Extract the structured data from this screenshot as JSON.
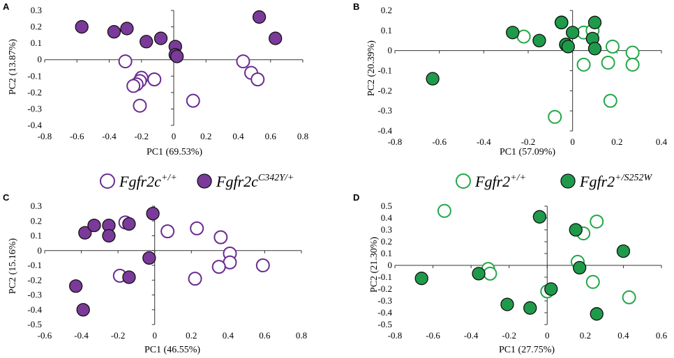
{
  "colors": {
    "purple": "#6a2c91",
    "purple_fill": "#7b3a9a",
    "green": "#22a748",
    "green_fill": "#1f9a4a",
    "stroke_dark": "#111111",
    "axis": "#333333"
  },
  "legends": [
    {
      "items": [
        {
          "name": "Fgfr2c",
          "sup": "+/+",
          "style": "open",
          "color": "purple"
        },
        {
          "name": "Fgfr2c",
          "sup": "C342Y/+",
          "style": "filled",
          "color": "purple"
        }
      ]
    },
    {
      "items": [
        {
          "name": "Fgfr2",
          "sup": "+/+",
          "style": "open",
          "color": "green"
        },
        {
          "name": "Fgfr2",
          "sup": "+/S252W",
          "style": "filled",
          "color": "green"
        }
      ]
    }
  ],
  "chart_data": [
    {
      "type": "scatter",
      "panel": "A",
      "xlabel": "PC1 (69.53%)",
      "ylabel": "PC2 (13.87%)",
      "xlim": [
        -0.8,
        0.8
      ],
      "ylim": [
        -0.4,
        0.3
      ],
      "xticks": [
        "-0.8",
        "-0.6",
        "-0.4",
        "-0.2",
        "0",
        "0.2",
        "0.4",
        "0.6",
        "0.8"
      ],
      "yticks": [
        "-0.4",
        "-0.3",
        "-0.2",
        "-0.1",
        "0",
        "0.1",
        "0.2",
        "0.3"
      ],
      "color": "purple",
      "series": [
        {
          "name": "Fgfr2c+/+",
          "style": "open",
          "points": [
            [
              -0.3,
              -0.01
            ],
            [
              -0.2,
              -0.11
            ],
            [
              -0.21,
              -0.13
            ],
            [
              -0.23,
              -0.15
            ],
            [
              -0.25,
              -0.16
            ],
            [
              -0.12,
              -0.12
            ],
            [
              -0.21,
              -0.28
            ],
            [
              0.12,
              -0.25
            ],
            [
              0.43,
              -0.01
            ],
            [
              0.48,
              -0.08
            ],
            [
              0.52,
              -0.12
            ]
          ]
        },
        {
          "name": "Fgfr2cC342Y/+",
          "style": "filled",
          "points": [
            [
              -0.57,
              0.2
            ],
            [
              -0.37,
              0.17
            ],
            [
              -0.29,
              0.19
            ],
            [
              -0.17,
              0.11
            ],
            [
              -0.08,
              0.13
            ],
            [
              0.01,
              0.08
            ],
            [
              0.01,
              0.03
            ],
            [
              0.02,
              0.02
            ],
            [
              0.53,
              0.26
            ],
            [
              0.63,
              0.13
            ]
          ]
        }
      ]
    },
    {
      "type": "scatter",
      "panel": "B",
      "xlabel": "PC1 (57.09%)",
      "ylabel": "PC2 (20.39%)",
      "xlim": [
        -0.8,
        0.4
      ],
      "ylim": [
        -0.4,
        0.2
      ],
      "xticks": [
        "-0.8",
        "-0.6",
        "-0.4",
        "-0.2",
        "0",
        "0.2",
        "0.4"
      ],
      "yticks": [
        "-0.4",
        "-0.3",
        "-0.2",
        "-0.1",
        "0",
        "0.1",
        "0.2"
      ],
      "color": "green",
      "series": [
        {
          "name": "Fgfr2+/+",
          "style": "open",
          "points": [
            [
              -0.22,
              0.07
            ],
            [
              -0.05,
              0.14
            ],
            [
              0.05,
              0.09
            ],
            [
              0.05,
              -0.07
            ],
            [
              0.18,
              0.02
            ],
            [
              0.27,
              -0.01
            ],
            [
              0.27,
              -0.07
            ],
            [
              0.16,
              -0.06
            ],
            [
              0.17,
              -0.25
            ],
            [
              -0.08,
              -0.33
            ],
            [
              -0.03,
              0.03
            ],
            [
              0.09,
              0.1
            ]
          ]
        },
        {
          "name": "Fgfr2+/S252W",
          "style": "filled",
          "points": [
            [
              -0.27,
              0.09
            ],
            [
              -0.15,
              0.05
            ],
            [
              -0.05,
              0.14
            ],
            [
              0.0,
              0.09
            ],
            [
              -0.03,
              0.03
            ],
            [
              -0.02,
              0.02
            ],
            [
              0.1,
              0.14
            ],
            [
              0.09,
              0.06
            ],
            [
              0.1,
              0.01
            ],
            [
              -0.63,
              -0.14
            ]
          ]
        }
      ]
    },
    {
      "type": "scatter",
      "panel": "C",
      "xlabel": "PC1 (46.55%)",
      "ylabel": "PC2 (15.16%)",
      "xlim": [
        -0.6,
        0.8
      ],
      "ylim": [
        -0.5,
        0.3
      ],
      "xticks": [
        "-0.6",
        "-0.4",
        "-0.2",
        "0",
        "0.2",
        "0.4",
        "0.6",
        "0.8"
      ],
      "yticks": [
        "-0.5",
        "-0.4",
        "-0.3",
        "-0.2",
        "-0.1",
        "0",
        "0.1",
        "0.2",
        "0.3"
      ],
      "color": "purple",
      "series": [
        {
          "name": "Fgfr2c+/+",
          "style": "open",
          "points": [
            [
              -0.16,
              0.19
            ],
            [
              0.07,
              0.13
            ],
            [
              0.23,
              0.15
            ],
            [
              0.36,
              0.09
            ],
            [
              0.41,
              -0.02
            ],
            [
              0.41,
              -0.08
            ],
            [
              0.35,
              -0.11
            ],
            [
              0.59,
              -0.1
            ],
            [
              -0.19,
              -0.17
            ],
            [
              0.22,
              -0.19
            ]
          ]
        },
        {
          "name": "Fgfr2cC342Y/+",
          "style": "filled",
          "points": [
            [
              -0.38,
              0.12
            ],
            [
              -0.33,
              0.17
            ],
            [
              -0.25,
              0.17
            ],
            [
              -0.25,
              0.1
            ],
            [
              -0.14,
              0.18
            ],
            [
              -0.01,
              0.25
            ],
            [
              -0.03,
              -0.05
            ],
            [
              -0.14,
              -0.18
            ],
            [
              -0.43,
              -0.24
            ],
            [
              -0.39,
              -0.4
            ]
          ]
        }
      ]
    },
    {
      "type": "scatter",
      "panel": "D",
      "xlabel": "PC1 (27.75%)",
      "ylabel": "PC2 (21.30%)",
      "xlim": [
        -0.8,
        0.6
      ],
      "ylim": [
        -0.5,
        0.5
      ],
      "xticks": [
        "-0.8",
        "-0.6",
        "-0.4",
        "-0.2",
        "0",
        "0.2",
        "0.4",
        "0.6"
      ],
      "yticks": [
        "-0.5",
        "-0.4",
        "-0.3",
        "-0.2",
        "-0.1",
        "0",
        "0.1",
        "0.2",
        "0.3",
        "0.4",
        "0.5"
      ],
      "color": "green",
      "series": [
        {
          "name": "Fgfr2+/+",
          "style": "open",
          "points": [
            [
              -0.54,
              0.46
            ],
            [
              0.26,
              0.37
            ],
            [
              0.19,
              0.27
            ],
            [
              0.16,
              0.03
            ],
            [
              -0.31,
              -0.03
            ],
            [
              -0.3,
              -0.07
            ],
            [
              0.24,
              -0.14
            ],
            [
              0.0,
              -0.22
            ],
            [
              0.43,
              -0.27
            ]
          ]
        },
        {
          "name": "Fgfr2+/S252W",
          "style": "filled",
          "points": [
            [
              -0.04,
              0.41
            ],
            [
              0.15,
              0.3
            ],
            [
              0.4,
              0.12
            ],
            [
              0.17,
              -0.02
            ],
            [
              -0.66,
              -0.11
            ],
            [
              -0.36,
              -0.07
            ],
            [
              0.02,
              -0.2
            ],
            [
              -0.21,
              -0.33
            ],
            [
              -0.09,
              -0.36
            ],
            [
              0.26,
              -0.41
            ]
          ]
        }
      ]
    }
  ]
}
